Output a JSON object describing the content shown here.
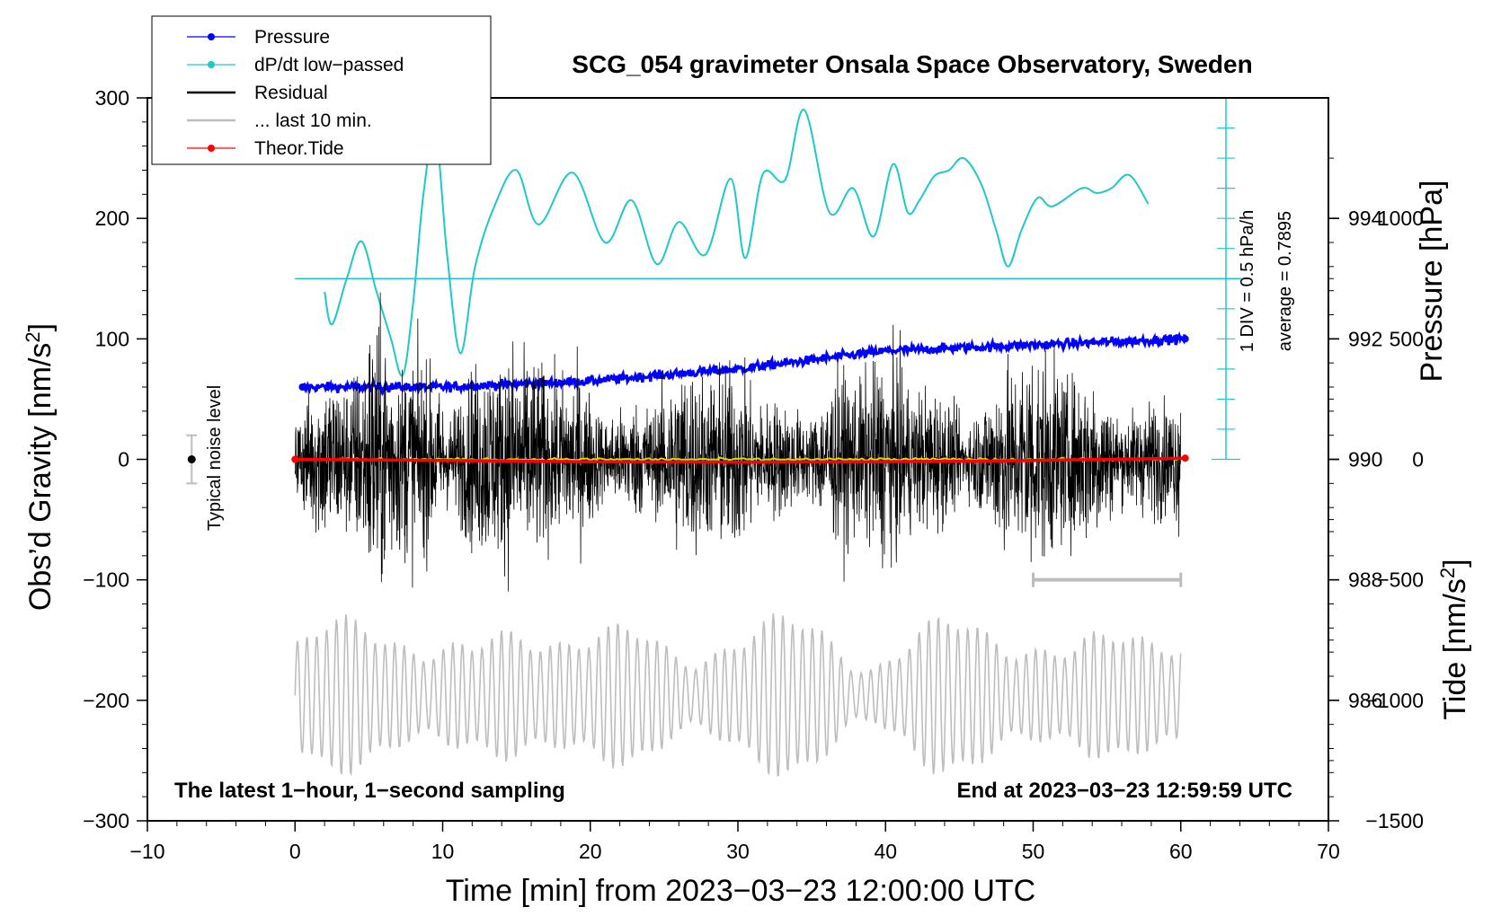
{
  "chart_data": {
    "type": "line",
    "title": "SCG_054 gravimeter Onsala Space Observatory, Sweden",
    "xlabel": "Time [min] from 2023−03−23 12:00:00 UTC",
    "ylabel_left_prefix": "Obs’d Gravity [nm/s",
    "ylabel_left_sup": "2",
    "ylabel_left_suffix": "]",
    "ylabel_right_pressure": "Pressure [hPa]",
    "ylabel_right_tide_prefix": "Tide [nm/s",
    "ylabel_right_tide_sup": "2",
    "ylabel_right_tide_suffix": "]",
    "xlim": [
      -10,
      70
    ],
    "ylim": [
      -300,
      300
    ],
    "pressure_range": [
      984,
      996
    ],
    "tide_range": [
      -1500,
      1500
    ],
    "x_ticks": [
      -10,
      0,
      10,
      20,
      30,
      40,
      50,
      60,
      70
    ],
    "x_tick_labels": [
      "−10",
      "0",
      "10",
      "20",
      "30",
      "40",
      "50",
      "60",
      "70"
    ],
    "y_ticks": [
      -300,
      -200,
      -100,
      0,
      100,
      200,
      300
    ],
    "y_tick_labels": [
      "−300",
      "−200",
      "−100",
      "0",
      "100",
      "200",
      "300"
    ],
    "pressure_ticks": [
      986,
      988,
      990,
      992,
      994
    ],
    "pressure_tick_labels": [
      "986",
      "988",
      "990",
      "992",
      "994"
    ],
    "tide_ticks": [
      -1500,
      -1000,
      -500,
      0,
      500,
      1000
    ],
    "tide_tick_labels": [
      "−1500",
      "−1000",
      "−500",
      "0",
      "500",
      "1000"
    ],
    "legend": [
      {
        "label": "Pressure",
        "color": "#0000ff",
        "marker": true
      },
      {
        "label": "dP/dt low−passed",
        "color": "#1ec8c8",
        "marker": true
      },
      {
        "label": "Residual",
        "color": "#000000",
        "marker": false
      },
      {
        "label": "... last 10 min.",
        "color": "#bdbdbd",
        "marker": false
      },
      {
        "label": "Theor.Tide",
        "color": "#ff0000",
        "marker": true
      }
    ],
    "pressure_series": {
      "name": "Pressure",
      "x": [
        0.5,
        10,
        20,
        30,
        40,
        50,
        60.3
      ],
      "y": [
        991.2,
        991.2,
        991.3,
        991.5,
        991.8,
        991.9,
        992.0
      ]
    },
    "dpdt_series": {
      "name": "dP/dt low−passed",
      "x": [
        2,
        2.5,
        3.5,
        4.5,
        5.5,
        6.5,
        7.3,
        8,
        8.7,
        9.5,
        10.3,
        11.2,
        12.2,
        13.5,
        15,
        16.5,
        18.8,
        21,
        22.8,
        24.5,
        26,
        27.8,
        29.5,
        30.5,
        31.7,
        33.2,
        34.5,
        36.2,
        37.8,
        39.2,
        40.5,
        41.5,
        42.3,
        43.3,
        44.3,
        45.3,
        46.5,
        47.5,
        48.3,
        49.2,
        50.3,
        51.3,
        53.3,
        54.3,
        55.3,
        56.5,
        57.8
      ],
      "y": [
        139,
        112,
        150,
        181,
        140,
        100,
        70,
        130,
        220,
        272,
        170,
        88,
        160,
        210,
        240,
        195,
        238,
        180,
        215,
        162,
        197,
        170,
        233,
        167,
        237,
        232,
        290,
        205,
        225,
        185,
        245,
        205,
        215,
        235,
        240,
        250,
        228,
        190,
        160,
        190,
        217,
        210,
        225,
        221,
        225,
        236,
        212
      ]
    },
    "dpdt_ref": {
      "value": 0.7895,
      "label": "average = 0.7895",
      "scale_label": "1 DIV = 0.5 hPa/h"
    },
    "residual_series": {
      "name": "Residual",
      "x_range": [
        0,
        60
      ],
      "approx_amplitude": 50,
      "envelope_max": [
        120,
        -125
      ],
      "mean": 0
    },
    "last10_series": {
      "name": "... last 10 min.",
      "x_range": [
        0,
        60
      ],
      "approx_amplitude": 50,
      "center": -196
    },
    "tide_series": {
      "name": "Theor.Tide",
      "x": [
        0,
        10,
        20,
        30,
        40,
        50,
        60.3
      ],
      "y": [
        0,
        -5,
        -10,
        -12,
        -10,
        -5,
        5
      ]
    },
    "noise_level": {
      "label": "Typical noise level",
      "x": -7,
      "y": 0,
      "range": [
        -20,
        20
      ]
    },
    "last10_bar": {
      "x": [
        50,
        60
      ],
      "y": -100
    },
    "note_left": "The latest 1−hour, 1−second sampling",
    "note_right": "End at 2023−03−23 12:59:59 UTC"
  }
}
